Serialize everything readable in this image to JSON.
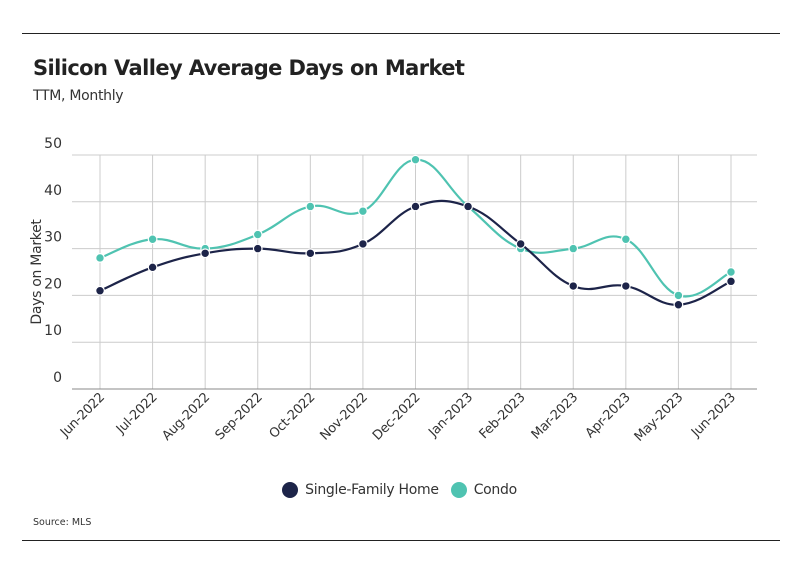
{
  "header": {
    "title": "Silicon Valley Average Days on Market",
    "subtitle": "TTM, Monthly"
  },
  "footer": {
    "source": "Source: MLS"
  },
  "colors": {
    "single_family": "#1d2449",
    "condo": "#4fc3b1",
    "grid": "#cccccc",
    "axis": "#888888"
  },
  "chart_data": {
    "type": "line",
    "title": "Silicon Valley Average Days on Market",
    "subtitle": "TTM, Monthly",
    "xlabel": "",
    "ylabel": "Days on Market",
    "ylim": [
      0,
      50
    ],
    "yticks": [
      0,
      10,
      20,
      30,
      40,
      50
    ],
    "grid": true,
    "legend": "bottom-center",
    "categories": [
      "Jun-2022",
      "Jul-2022",
      "Aug-2022",
      "Sep-2022",
      "Oct-2022",
      "Nov-2022",
      "Dec-2022",
      "Jan-2023",
      "Feb-2023",
      "Mar-2023",
      "Apr-2023",
      "May-2023",
      "Jun-2023"
    ],
    "series": [
      {
        "name": "Single-Family Home",
        "color": "#1d2449",
        "values": [
          21,
          26,
          29,
          30,
          29,
          31,
          39,
          39,
          31,
          22,
          22,
          18,
          23
        ]
      },
      {
        "name": "Condo",
        "color": "#4fc3b1",
        "values": [
          28,
          32,
          30,
          33,
          39,
          38,
          49,
          39,
          30,
          30,
          32,
          20,
          25
        ]
      }
    ]
  }
}
